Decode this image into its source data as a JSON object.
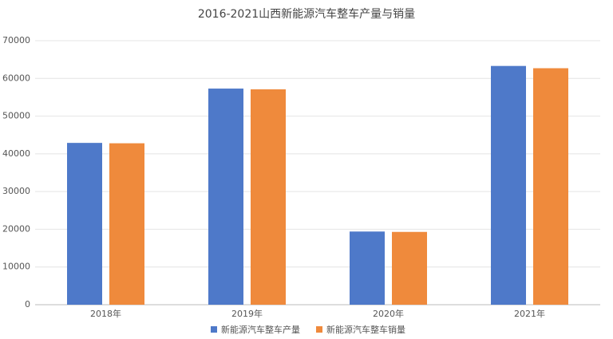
{
  "chart_data": {
    "type": "bar",
    "title": "2016-2021山西新能源汽车整车产量与销量",
    "categories": [
      "2018年",
      "2019年",
      "2020年",
      "2021年"
    ],
    "series": [
      {
        "name": "新能源汽车整车产量",
        "color": "#4e79c9",
        "values": [
          42900,
          57300,
          19400,
          63300
        ]
      },
      {
        "name": "新能源汽车整车销量",
        "color": "#ef8a3c",
        "values": [
          42800,
          57100,
          19300,
          62700
        ]
      }
    ],
    "ylim": [
      0,
      70000
    ],
    "yticks": [
      0,
      10000,
      20000,
      30000,
      40000,
      50000,
      60000,
      70000
    ],
    "grid": true
  }
}
